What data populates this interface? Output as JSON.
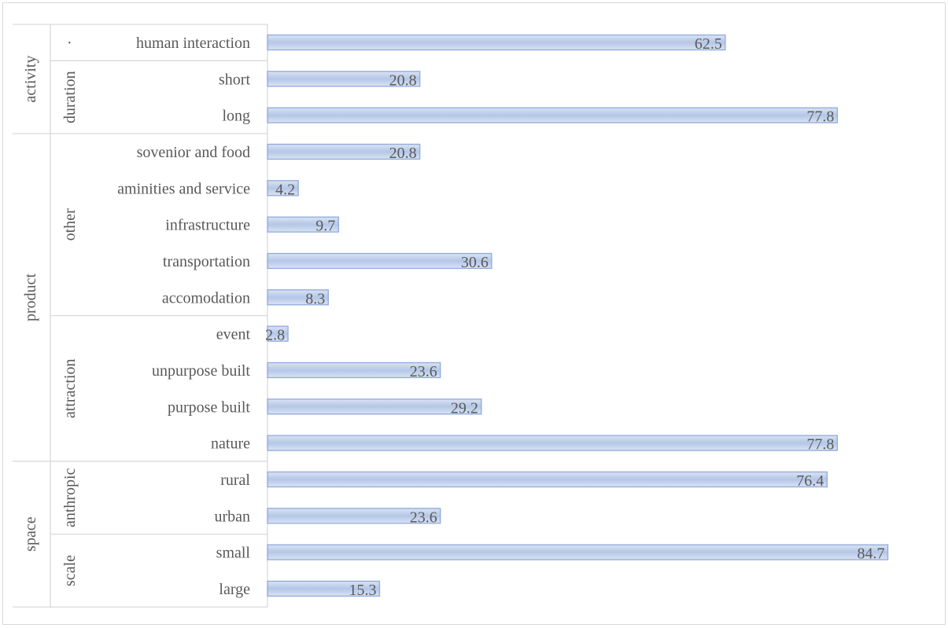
{
  "chart_data": {
    "type": "bar",
    "orientation": "horizontal",
    "xlim": [
      0,
      100
    ],
    "grid": false,
    "bar_color": "#b4c7e7",
    "bar_edge_color": "#8faadc",
    "label_color": "#595959",
    "categories": [
      "human interaction",
      "short",
      "long",
      "sovenior and food",
      "aminities and service",
      "infrastructure",
      "transportation",
      "accomodation",
      "event",
      "unpurpose built",
      "purpose built",
      "nature",
      "rural",
      "urban",
      "small",
      "large"
    ],
    "value_labels": [
      "62.5",
      "20.8",
      "77.8",
      "20.8",
      "4.2",
      "9.7",
      "30.6",
      "8.3",
      "2.8",
      "23.6",
      "29.2",
      "77.8",
      "76.4",
      "23.6",
      "84.7",
      "15.3"
    ],
    "series": [
      {
        "values": [
          62.5,
          20.8,
          77.8,
          20.8,
          4.2,
          9.7,
          30.6,
          8.3,
          2.8,
          23.6,
          29.2,
          77.8,
          76.4,
          23.6,
          84.7,
          15.3
        ]
      }
    ],
    "groups": [
      {
        "label": "activity",
        "start": 0,
        "end": 2,
        "subgroups": [
          {
            "label": "·",
            "start": 0,
            "end": 0
          },
          {
            "label": "duration",
            "start": 1,
            "end": 2
          }
        ]
      },
      {
        "label": "product",
        "start": 3,
        "end": 11,
        "subgroups": [
          {
            "label": "other",
            "start": 3,
            "end": 7
          },
          {
            "label": "attraction",
            "start": 8,
            "end": 11
          }
        ]
      },
      {
        "label": "space",
        "start": 12,
        "end": 15,
        "subgroups": [
          {
            "label": "anthropic",
            "start": 12,
            "end": 13
          },
          {
            "label": "scale",
            "start": 14,
            "end": 15
          }
        ]
      }
    ]
  }
}
